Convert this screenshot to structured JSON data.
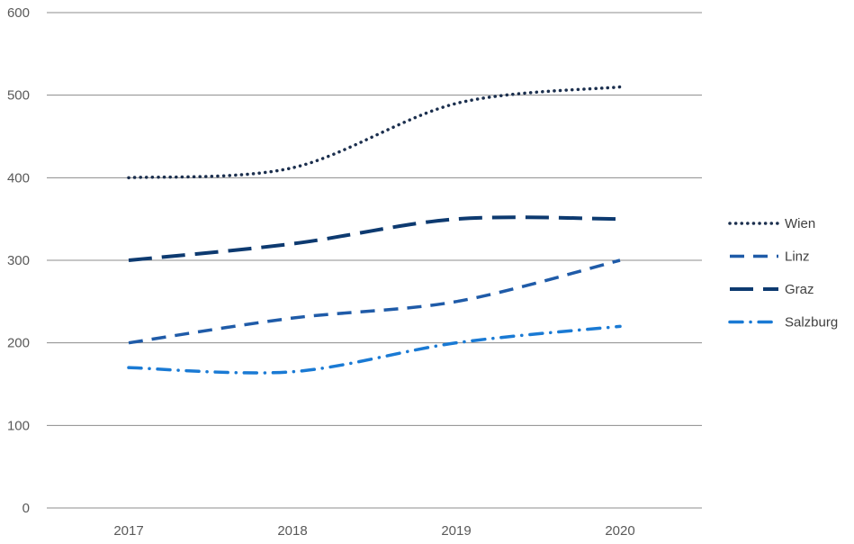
{
  "chart_data": {
    "type": "line",
    "title": "",
    "xlabel": "",
    "ylabel": "",
    "categories": [
      "2017",
      "2018",
      "2019",
      "2020"
    ],
    "ylim": [
      0,
      600
    ],
    "yticks": [
      0,
      100,
      200,
      300,
      400,
      500,
      600
    ],
    "grid": "horizontal",
    "legend_position": "right",
    "series": [
      {
        "name": "Wien",
        "values": [
          400,
          412,
          490,
          510
        ],
        "color": "#1b2f4e",
        "style": "dotted"
      },
      {
        "name": "Linz",
        "values": [
          200,
          230,
          250,
          300
        ],
        "color": "#1f5ba8",
        "style": "dashed"
      },
      {
        "name": "Graz",
        "values": [
          300,
          320,
          350,
          350
        ],
        "color": "#0d3a70",
        "style": "long-dash"
      },
      {
        "name": "Salzburg",
        "values": [
          170,
          165,
          200,
          220
        ],
        "color": "#1a7ad4",
        "style": "dash-dot"
      }
    ]
  }
}
